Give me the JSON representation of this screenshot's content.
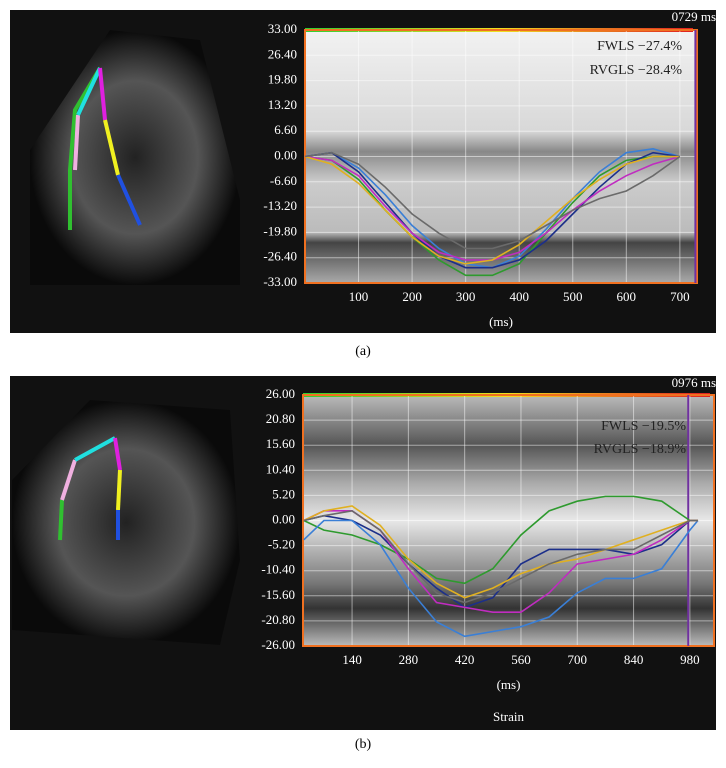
{
  "chart_data": [
    {
      "type": "line",
      "title": "0729 ms",
      "x_label": "(ms)",
      "panel_label": "(a)",
      "annotations": [
        "FWLS −27.4%",
        "RVGLS −28.4%"
      ],
      "cursor": 729,
      "xlim": [
        0,
        732
      ],
      "xticks": [
        100,
        200,
        300,
        400,
        500,
        600,
        700
      ],
      "ylim": [
        -33,
        33
      ],
      "yticks": [
        {
          "value": 33,
          "label": "33.00"
        },
        {
          "value": 26.4,
          "label": "26.40"
        },
        {
          "value": 19.8,
          "label": "19.80"
        },
        {
          "value": 13.2,
          "label": "13.20"
        },
        {
          "value": 6.6,
          "label": "6.60"
        },
        {
          "value": 0,
          "label": "0.00"
        },
        {
          "value": -6.6,
          "label": "-6.60"
        },
        {
          "value": -13.2,
          "label": "-13.20"
        },
        {
          "value": -19.8,
          "label": "-19.80"
        },
        {
          "value": -26.4,
          "label": "-26.40"
        },
        {
          "value": -33,
          "label": "-33.00"
        }
      ],
      "grid": true,
      "x": [
        0,
        50,
        100,
        150,
        200,
        250,
        300,
        350,
        400,
        450,
        500,
        550,
        600,
        650,
        700
      ],
      "series": [
        {
          "color": "#2e9a2e",
          "values": [
            0,
            -1,
            -6,
            -14,
            -21,
            -27,
            -31,
            -31,
            -28,
            -20,
            -12,
            -5,
            -1,
            0,
            0
          ]
        },
        {
          "color": "#3a7fd6",
          "values": [
            0,
            1,
            -3,
            -10,
            -18,
            -24,
            -28,
            -29,
            -26,
            -19,
            -11,
            -4,
            1,
            2,
            0
          ]
        },
        {
          "color": "#1c2f8a",
          "values": [
            0,
            1,
            -4,
            -12,
            -20,
            -26,
            -29,
            -29,
            -27,
            -22,
            -15,
            -8,
            -2,
            1,
            0
          ]
        },
        {
          "color": "#c02cc0",
          "values": [
            0,
            -1,
            -5,
            -13,
            -20,
            -25,
            -27,
            -27,
            -25,
            -20,
            -14,
            -9,
            -5,
            -2,
            0
          ]
        },
        {
          "color": "#e0b020",
          "values": [
            0,
            -2,
            -7,
            -14,
            -21,
            -26,
            -28,
            -27,
            -23,
            -17,
            -11,
            -6,
            -2,
            0,
            0
          ]
        },
        {
          "color": "#6a6a6a",
          "values": [
            0,
            1,
            -2,
            -8,
            -15,
            -20,
            -24,
            -24,
            -22,
            -18,
            -14,
            -11,
            -9,
            -5,
            0
          ]
        }
      ]
    },
    {
      "type": "line",
      "title": "0976 ms",
      "x_label": "(ms)",
      "panel_label": "(b)",
      "footer": "Strain",
      "annotations": [
        "FWLS −19.5%",
        "RVGLS −18.9%"
      ],
      "cursor": 976,
      "xlim": [
        18,
        1040
      ],
      "xticks": [
        140,
        280,
        420,
        560,
        700,
        840,
        980
      ],
      "ylim": [
        -26,
        26
      ],
      "yticks": [
        {
          "value": 26,
          "label": "26.00"
        },
        {
          "value": 20.8,
          "label": "20.80"
        },
        {
          "value": 15.6,
          "label": "15.60"
        },
        {
          "value": 10.4,
          "label": "10.40"
        },
        {
          "value": 5.2,
          "label": "5.20"
        },
        {
          "value": 0,
          "label": "0.00"
        },
        {
          "value": -5.2,
          "label": "-5.20"
        },
        {
          "value": -10.4,
          "label": "-10.40"
        },
        {
          "value": -15.6,
          "label": "-15.60"
        },
        {
          "value": -20.8,
          "label": "-20.80"
        },
        {
          "value": -26,
          "label": "-26.00"
        }
      ],
      "grid": true,
      "x": [
        20,
        70,
        140,
        210,
        280,
        350,
        420,
        490,
        560,
        630,
        700,
        770,
        840,
        910,
        980,
        1000
      ],
      "series": [
        {
          "color": "#2e9a2e",
          "values": [
            0,
            -2,
            -3,
            -5,
            -8,
            -12,
            -13,
            -10,
            -3,
            2,
            4,
            5,
            5,
            4,
            0,
            0
          ]
        },
        {
          "color": "#1c2f8a",
          "values": [
            0,
            1,
            0,
            -3,
            -9,
            -14,
            -18,
            -16,
            -9,
            -6,
            -6,
            -6,
            -7,
            -5,
            0,
            0
          ]
        },
        {
          "color": "#3a7fd6",
          "values": [
            -4,
            0,
            0,
            -5,
            -14,
            -21,
            -24,
            -23,
            -22,
            -20,
            -15,
            -12,
            -12,
            -10,
            -2,
            0
          ]
        },
        {
          "color": "#c02cc0",
          "values": [
            0,
            2,
            2,
            -2,
            -10,
            -17,
            -18,
            -19,
            -19,
            -15,
            -9,
            -8,
            -7,
            -4,
            0,
            0
          ]
        },
        {
          "color": "#e0b020",
          "values": [
            0,
            2,
            3,
            -1,
            -8,
            -13,
            -16,
            -14,
            -11,
            -9,
            -8,
            -6,
            -4,
            -2,
            0,
            0
          ]
        },
        {
          "color": "#6a6a6a",
          "values": [
            0,
            1,
            2,
            -2,
            -9,
            -15,
            -17,
            -15,
            -12,
            -9,
            -7,
            -6,
            -6,
            -3,
            0,
            0
          ]
        }
      ]
    }
  ]
}
